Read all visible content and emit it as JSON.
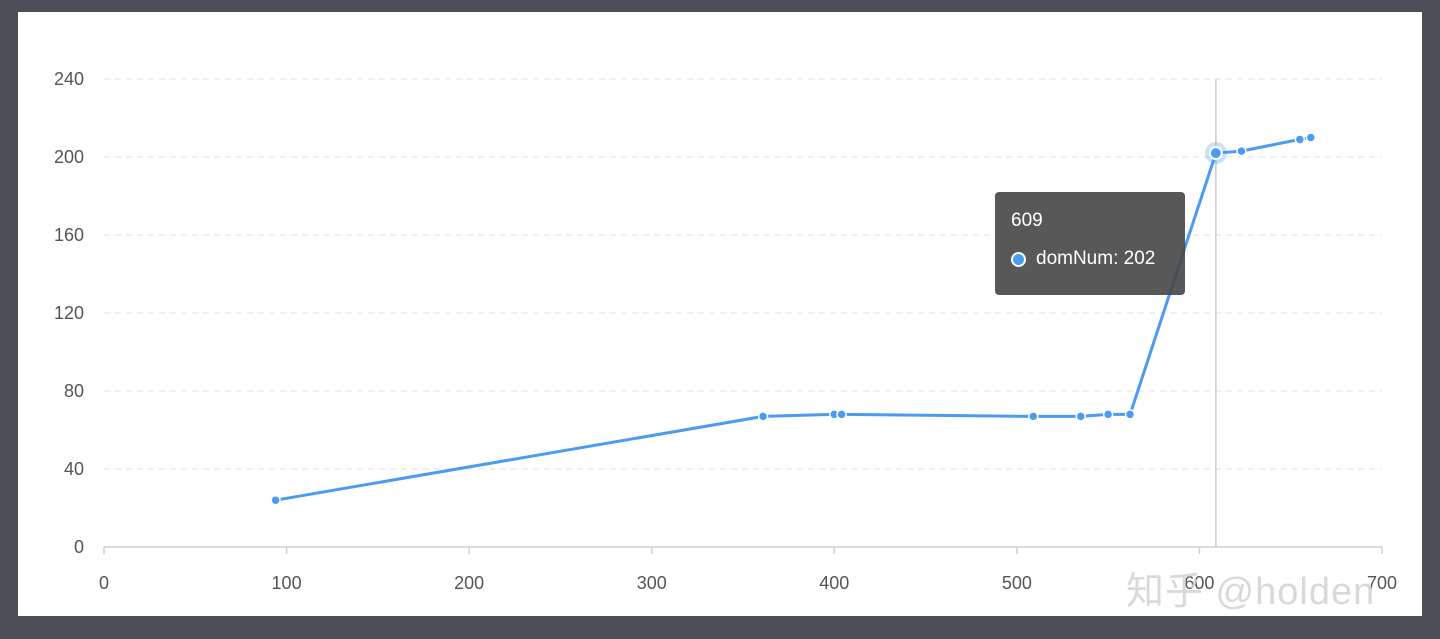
{
  "colors": {
    "line": "#4b9cf0",
    "tooltip_bg": "#464646",
    "grid": "#e6e6e6"
  },
  "chart_data": {
    "type": "line",
    "title": "",
    "xlabel": "",
    "ylabel": "",
    "xlim": [
      0,
      700
    ],
    "ylim": [
      0,
      240
    ],
    "xticks": [
      "0",
      "100",
      "200",
      "300",
      "400",
      "500",
      "600",
      "700"
    ],
    "yticks": [
      "0",
      "40",
      "80",
      "120",
      "160",
      "200",
      "240"
    ],
    "grid": "horizontal-dashed",
    "series": [
      {
        "name": "domNum",
        "x": [
          94,
          361,
          400,
          404,
          509,
          535,
          550,
          562,
          609,
          623,
          655,
          661
        ],
        "y": [
          24,
          67,
          68,
          68,
          67,
          67,
          68,
          68,
          202,
          203,
          209,
          210
        ]
      }
    ],
    "highlight": {
      "x": 609,
      "y": 202
    },
    "tooltip": {
      "title": "609",
      "series_label": "domNum: 202"
    }
  },
  "watermark": {
    "text": "知乎 @holden"
  }
}
